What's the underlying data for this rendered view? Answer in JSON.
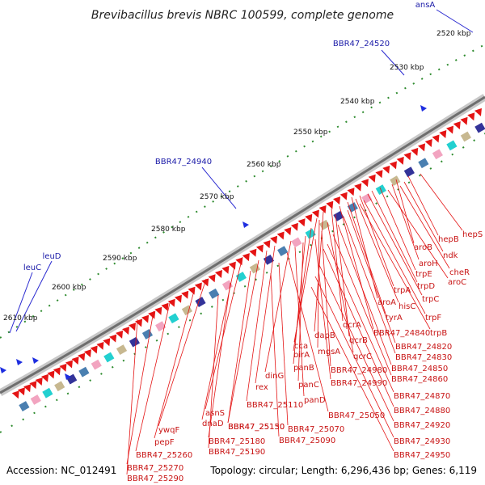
{
  "title": "Brevibacillus brevis NBRC 100599, complete genome",
  "footer": {
    "accession": "Accession: NC_012491",
    "summary": "Topology: circular; Length: 6,296,436 bp; Genes: 6,119"
  },
  "ticks": [
    "2520 kbp",
    "2530 kbp",
    "2540 kbp",
    "2550 kbp",
    "2560 kbp",
    "2570 kbp",
    "2580 kbp",
    "2590 kbp",
    "2600 kbp",
    "2610 kbp"
  ],
  "labels_blue": [
    "ansA",
    "BBR47_24520",
    "BBR47_24940",
    "leuD",
    "leuC"
  ],
  "labels_red": [
    "hepS",
    "hepB",
    "aroB",
    "ndk",
    "aroH",
    "cheR",
    "trpE",
    "aroC",
    "trpD",
    "trpC",
    "trpA",
    "aroA",
    "hisC",
    "trpF",
    "tyrA",
    "trpB",
    "BBR47_24840",
    "qcrA",
    "BBR47_24820",
    "dapB",
    "qcrB",
    "BBR47_24830",
    "cca",
    "mgsA",
    "qcrC",
    "BBR47_24850",
    "birA",
    "BBR47_24980",
    "BBR47_24860",
    "panB",
    "BBR47_24990",
    "dinG",
    "panC",
    "BBR47_24870",
    "rex",
    "panD",
    "BBR47_24880",
    "BBR47_25110",
    "BBR47_25050",
    "asnS",
    "BBR47_25130",
    "BBR47_25070",
    "BBR47_24920",
    "dnaD",
    "BBR47_25150",
    "BBR47_25090",
    "BBR47_24930",
    "ywqF",
    "BBR47_25180",
    "BBR47_24950",
    "pepF",
    "BBR47_25190",
    "BBR47_25260",
    "BBR47_25270",
    "BBR47_25290"
  ],
  "colors": {
    "forward_gene": "#e41414",
    "reverse_gene": "#1e2ee0",
    "label_line": "#e41414",
    "blue_line": "#2a2ad0",
    "backbone": "#9a9a9a",
    "tick": "#2e8b2e"
  }
}
